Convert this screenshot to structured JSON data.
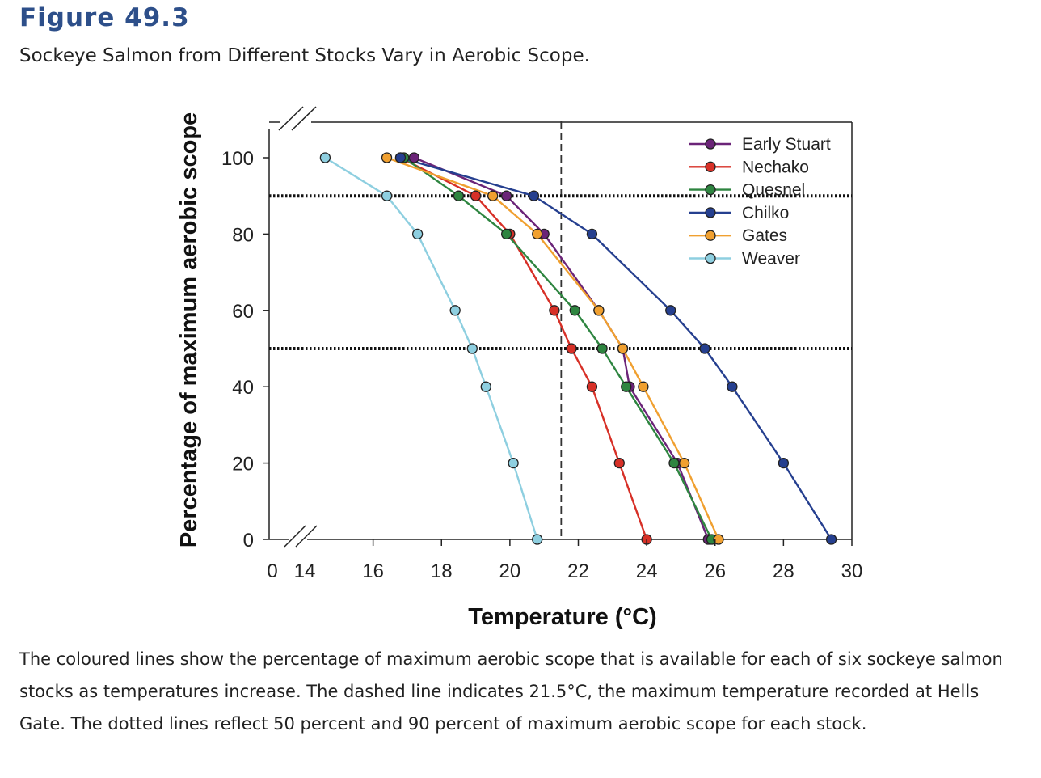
{
  "figure_label": "Figure 49.3",
  "figure_title": "Sockeye Salmon from Different Stocks Vary in Aerobic Scope.",
  "caption": "The coloured lines show the percentage of maximum aerobic scope that is available for each of six sockeye salmon stocks as temperatures increase. The dashed line indicates 21.5°C, the maximum temperature recorded at Hells Gate. The dotted lines reflect 50 percent and 90 percent of maximum aerobic scope for each stock.",
  "chart_data": {
    "type": "line",
    "xlabel": "Temperature (°C)",
    "ylabel": "Percentage of maximum aerobic scope",
    "xlim": [
      14,
      30
    ],
    "ylim": [
      0,
      100
    ],
    "x_ticks": [
      "14",
      "16",
      "18",
      "20",
      "22",
      "24",
      "26",
      "28",
      "30"
    ],
    "x_tick_values": [
      14,
      16,
      18,
      20,
      22,
      24,
      26,
      28,
      30
    ],
    "x_axis_zero_label": "0",
    "y_ticks": [
      "0",
      "20",
      "40",
      "60",
      "80",
      "100"
    ],
    "y_tick_values": [
      0,
      20,
      40,
      60,
      80,
      100
    ],
    "axis_breaks": true,
    "reference_lines": {
      "vertical_dashed_x": 21.5,
      "horizontal_dotted_y": [
        90,
        50
      ]
    },
    "legend_position": "top-right",
    "series": [
      {
        "name": "Early Stuart",
        "color": "#6b2478",
        "points": [
          [
            17.2,
            100
          ],
          [
            19.9,
            90
          ],
          [
            21.0,
            80
          ],
          [
            22.6,
            60
          ],
          [
            23.3,
            50
          ],
          [
            23.5,
            40
          ],
          [
            24.9,
            20
          ],
          [
            25.8,
            0
          ]
        ]
      },
      {
        "name": "Nechako",
        "color": "#d73027",
        "points": [
          [
            16.8,
            100
          ],
          [
            19.0,
            90
          ],
          [
            20.0,
            80
          ],
          [
            21.3,
            60
          ],
          [
            21.8,
            50
          ],
          [
            22.4,
            40
          ],
          [
            23.2,
            20
          ],
          [
            24.0,
            0
          ]
        ]
      },
      {
        "name": "Quesnel",
        "color": "#2e8540",
        "points": [
          [
            16.9,
            100
          ],
          [
            18.5,
            90
          ],
          [
            19.9,
            80
          ],
          [
            21.9,
            60
          ],
          [
            22.7,
            50
          ],
          [
            23.4,
            40
          ],
          [
            24.8,
            20
          ],
          [
            25.9,
            0
          ]
        ]
      },
      {
        "name": "Chilko",
        "color": "#253f8f",
        "points": [
          [
            16.8,
            100
          ],
          [
            20.7,
            90
          ],
          [
            22.4,
            80
          ],
          [
            24.7,
            60
          ],
          [
            25.7,
            50
          ],
          [
            26.5,
            40
          ],
          [
            28.0,
            20
          ],
          [
            29.4,
            0
          ]
        ]
      },
      {
        "name": "Gates",
        "color": "#f0a030",
        "points": [
          [
            16.4,
            100
          ],
          [
            19.5,
            90
          ],
          [
            20.8,
            80
          ],
          [
            22.6,
            60
          ],
          [
            23.3,
            50
          ],
          [
            23.9,
            40
          ],
          [
            25.1,
            20
          ],
          [
            26.1,
            0
          ]
        ]
      },
      {
        "name": "Weaver",
        "color": "#8ecfe0",
        "points": [
          [
            14.6,
            100
          ],
          [
            16.4,
            90
          ],
          [
            17.3,
            80
          ],
          [
            18.4,
            60
          ],
          [
            18.9,
            50
          ],
          [
            19.3,
            40
          ],
          [
            20.1,
            20
          ],
          [
            20.8,
            0
          ]
        ]
      }
    ]
  }
}
